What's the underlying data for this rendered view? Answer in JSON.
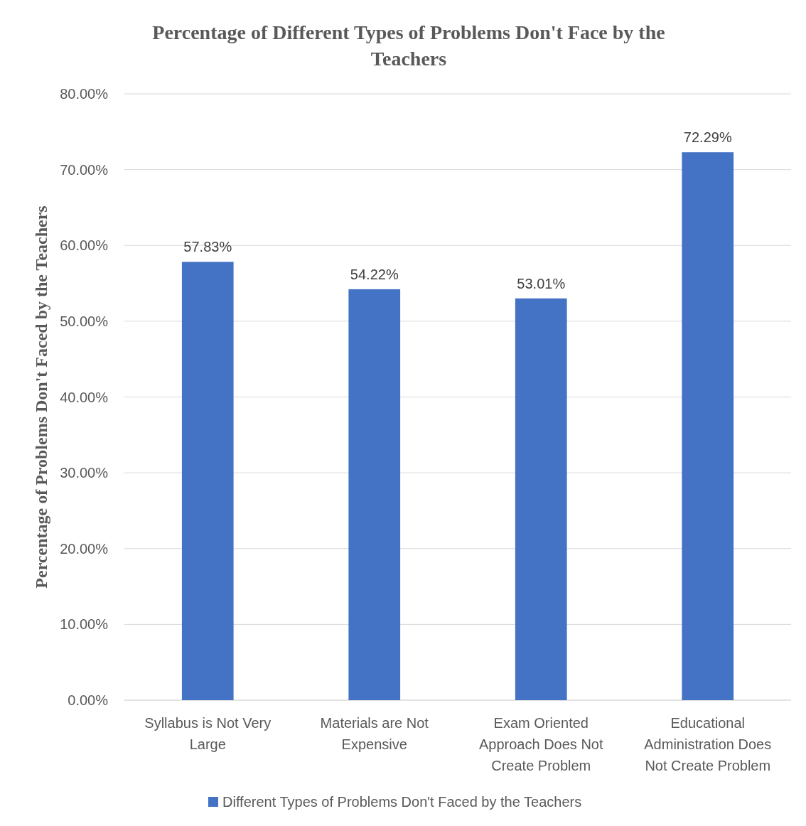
{
  "chart_data": {
    "type": "bar",
    "title": "Percentage of Different Types of Problems Don't Face by the Teachers",
    "ylabel": "Percentage of Problems Don't Faced by the Teachers",
    "categories": [
      "Syllabus is Not Very Large",
      "Materials are Not Expensive",
      "Exam Oriented Approach Does Not Create Problem",
      "Educational Administration Does Not Create Problem"
    ],
    "series": [
      {
        "name": "Different Types of Problems Don't Faced by the Teachers",
        "color": "#4472c4",
        "values": [
          57.83,
          54.22,
          53.01,
          72.29
        ]
      }
    ],
    "value_labels": [
      "57.83%",
      "54.22%",
      "53.01%",
      "72.29%"
    ],
    "ylim": [
      0,
      80
    ],
    "yticks": [
      {
        "value": 0,
        "label": "0.00%"
      },
      {
        "value": 10,
        "label": "10.00%"
      },
      {
        "value": 20,
        "label": "20.00%"
      },
      {
        "value": 30,
        "label": "30.00%"
      },
      {
        "value": 40,
        "label": "40.00%"
      },
      {
        "value": 50,
        "label": "50.00%"
      },
      {
        "value": 60,
        "label": "60.00%"
      },
      {
        "value": 70,
        "label": "70.00%"
      },
      {
        "value": 80,
        "label": "80.00%"
      }
    ],
    "grid": "y",
    "legend": "bottom"
  }
}
